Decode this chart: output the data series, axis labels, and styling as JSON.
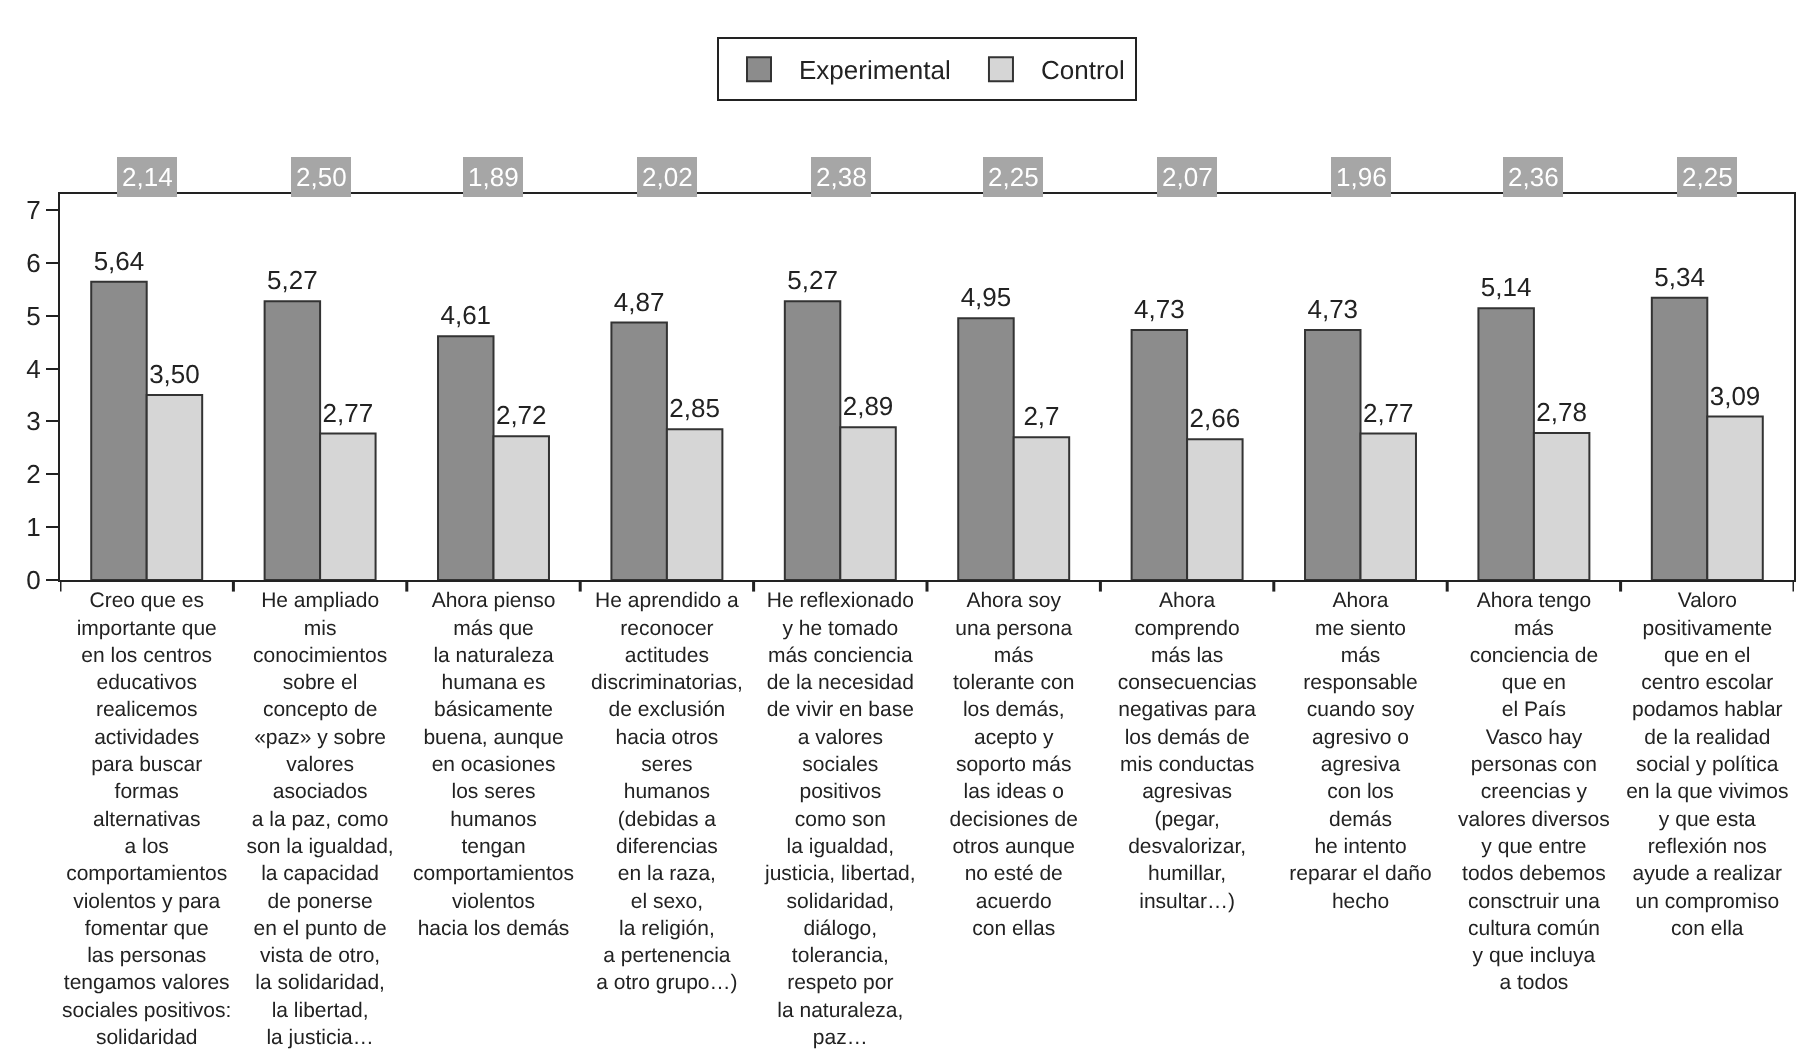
{
  "chart_data": {
    "type": "bar",
    "categories": [
      "Creo que es\nimportante que\nen los centros\neducativos\nrealicemos\nactividades\npara buscar\nformas\nalternativas\na los\ncomportamientos\nviolentos y para\nfomentar que\nlas personas\ntengamos valores\nsociales positivos:\nsolidaridad",
      "He ampliado\nmis\nconocimientos\nsobre el\nconcepto de\n«paz» y sobre\nvalores\nasociados\na la paz, como\nson la igualdad,\nla capacidad\nde ponerse\nen el punto de\nvista de otro,\nla solidaridad,\nla libertad,\nla justicia…",
      "Ahora pienso\nmás que\nla naturaleza\nhumana es\nbásicamente\nbuena, aunque\nen ocasiones\nlos seres\nhumanos\ntengan\ncomportamientos\nviolentos\nhacia los demás",
      "He aprendido a\nreconocer\nactitudes\ndiscriminatorias,\nde exclusión\nhacia otros\nseres\nhumanos\n(debidas a\ndiferencias\nen la raza,\nel sexo,\nla religión,\na pertenencia\na otro grupo…)",
      "He reflexionado\ny he tomado\nmás conciencia\nde la necesidad\nde vivir en base\na valores\nsociales\npositivos\ncomo son\nla igualdad,\njusticia, libertad,\nsolidaridad,\ndiálogo,\ntolerancia,\nrespeto por\nla naturaleza,\npaz…",
      "Ahora soy\nuna persona\nmás\ntolerante con\nlos demás,\nacepto y\nsoporto más\nlas ideas o\ndecisiones de\notros aunque\nno esté de\nacuerdo\ncon ellas",
      "Ahora\ncomprendo\nmás las\nconsecuencias\nnegativas para\nlos demás de\nmis conductas\nagresivas\n(pegar,\ndesvalorizar,\nhumillar,\ninsultar…)",
      "Ahora\nme siento\nmás\nresponsable\ncuando soy\nagresivo o\nagresiva\ncon los\ndemás\nhe intento\nreparar el daño\nhecho",
      "Ahora tengo\nmás\nconciencia de\nque en\nel País\nVasco hay\npersonas con\ncreencias y\nvalores diversos\ny que entre\ntodos debemos\nconsctruir una\ncultura común\ny que incluya\na todos",
      "Valoro\npositivamente\nque en el\ncentro escolar\npodamos hablar\nde la realidad\nsocial y política\nen la que vivimos\ny que esta\nreflexión nos\nayude a realizar\nun compromiso\ncon ella"
    ],
    "series": [
      {
        "name": "Experimental",
        "color": "#8c8c8c",
        "values": [
          5.64,
          5.27,
          4.61,
          4.87,
          5.27,
          4.95,
          4.73,
          4.73,
          5.14,
          5.34
        ],
        "value_labels": [
          "5,64",
          "5,27",
          "4,61",
          "4,87",
          "5,27",
          "4,95",
          "4,73",
          "4,73",
          "5,14",
          "5,34"
        ]
      },
      {
        "name": "Control",
        "color": "#d6d6d6",
        "values": [
          3.5,
          2.77,
          2.72,
          2.85,
          2.89,
          2.7,
          2.66,
          2.77,
          2.78,
          3.09
        ],
        "value_labels": [
          "3,50",
          "2,77",
          "2,72",
          "2,85",
          "2,89",
          "2,7",
          "2,66",
          "2,77",
          "2,78",
          "3,09"
        ]
      }
    ],
    "annotations": [
      "2,14",
      "2,50",
      "1,89",
      "2,02",
      "2,38",
      "2,25",
      "2,07",
      "1,96",
      "2,36",
      "2,25"
    ],
    "ylim": [
      0,
      7.3
    ],
    "yticks": [
      0,
      1,
      2,
      3,
      4,
      5,
      6,
      7
    ],
    "grid": false,
    "legend": "top"
  }
}
